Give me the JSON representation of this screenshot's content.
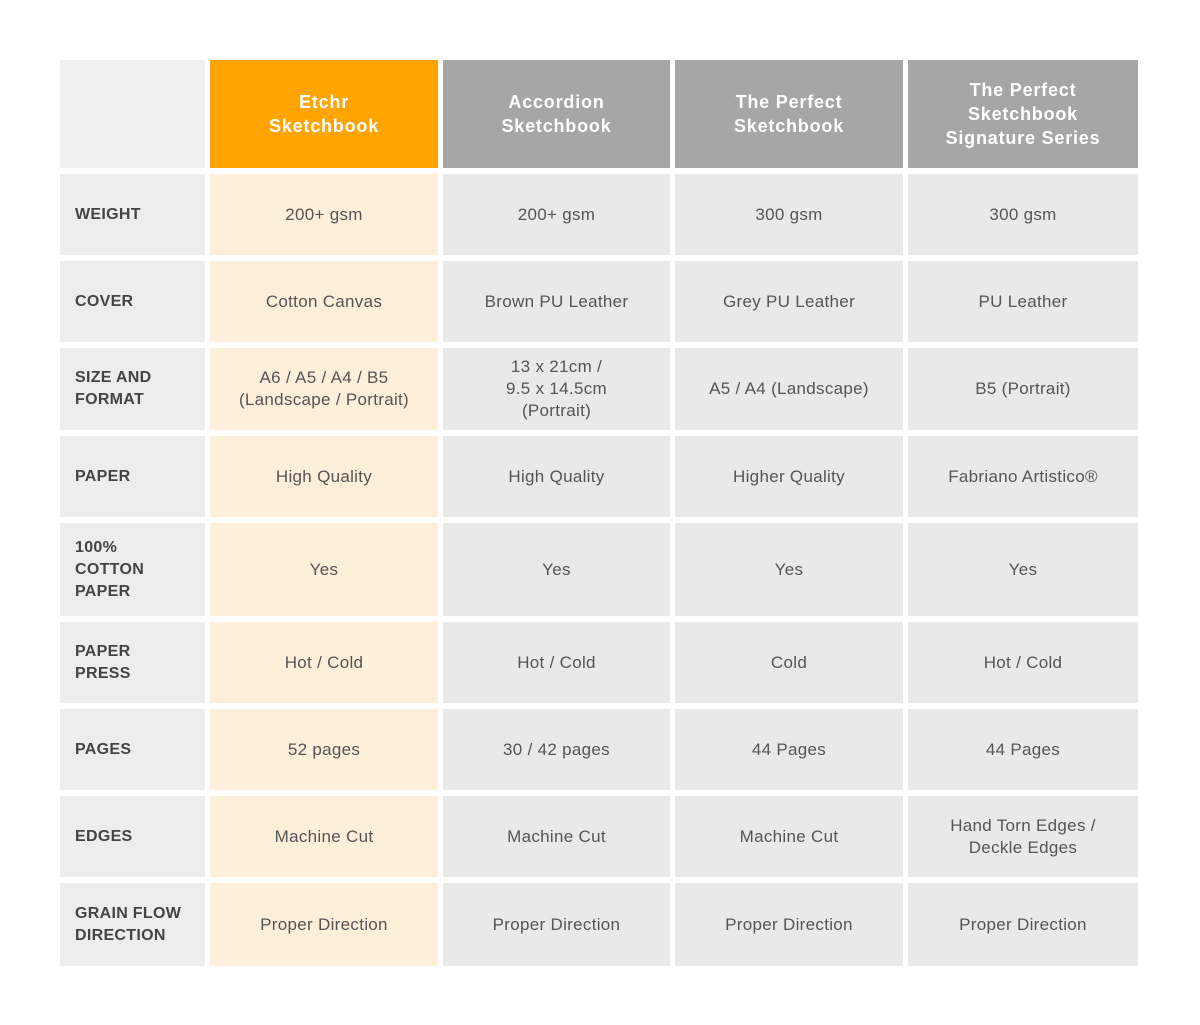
{
  "table": {
    "columns": [
      "Etchr\nSketchbook",
      "Accordion\nSketchbook",
      "The Perfect\nSketchbook",
      "The Perfect\nSketchbook\nSignature Series"
    ],
    "rows": [
      {
        "label": "WEIGHT",
        "cells": [
          "200+ gsm",
          "200+ gsm",
          "300 gsm",
          "300 gsm"
        ]
      },
      {
        "label": "COVER",
        "cells": [
          "Cotton Canvas",
          "Brown PU Leather",
          "Grey PU Leather",
          "PU Leather"
        ]
      },
      {
        "label": "SIZE AND\nFORMAT",
        "cells": [
          "A6 / A5 / A4 / B5\n(Landscape / Portrait)",
          "13 x 21cm /\n9.5 x 14.5cm\n(Portrait)",
          "A5 / A4 (Landscape)",
          "B5 (Portrait)"
        ]
      },
      {
        "label": "PAPER",
        "cells": [
          "High Quality",
          "High Quality",
          "Higher Quality",
          "Fabriano Artistico®"
        ]
      },
      {
        "label": "100%\nCOTTON\nPAPER",
        "cells": [
          "Yes",
          "Yes",
          "Yes",
          "Yes"
        ]
      },
      {
        "label": "PAPER\nPRESS",
        "cells": [
          "Hot / Cold",
          "Hot / Cold",
          "Cold",
          "Hot / Cold"
        ]
      },
      {
        "label": "PAGES",
        "cells": [
          "52 pages",
          "30 / 42 pages",
          "44 Pages",
          "44 Pages"
        ]
      },
      {
        "label": "EDGES",
        "cells": [
          "Machine Cut",
          "Machine Cut",
          "Machine Cut",
          "Hand Torn Edges /\nDeckle Edges"
        ]
      },
      {
        "label": "GRAIN FLOW\nDIRECTION",
        "cells": [
          "Proper Direction",
          "Proper Direction",
          "Proper Direction",
          "Proper Direction"
        ]
      }
    ]
  }
}
